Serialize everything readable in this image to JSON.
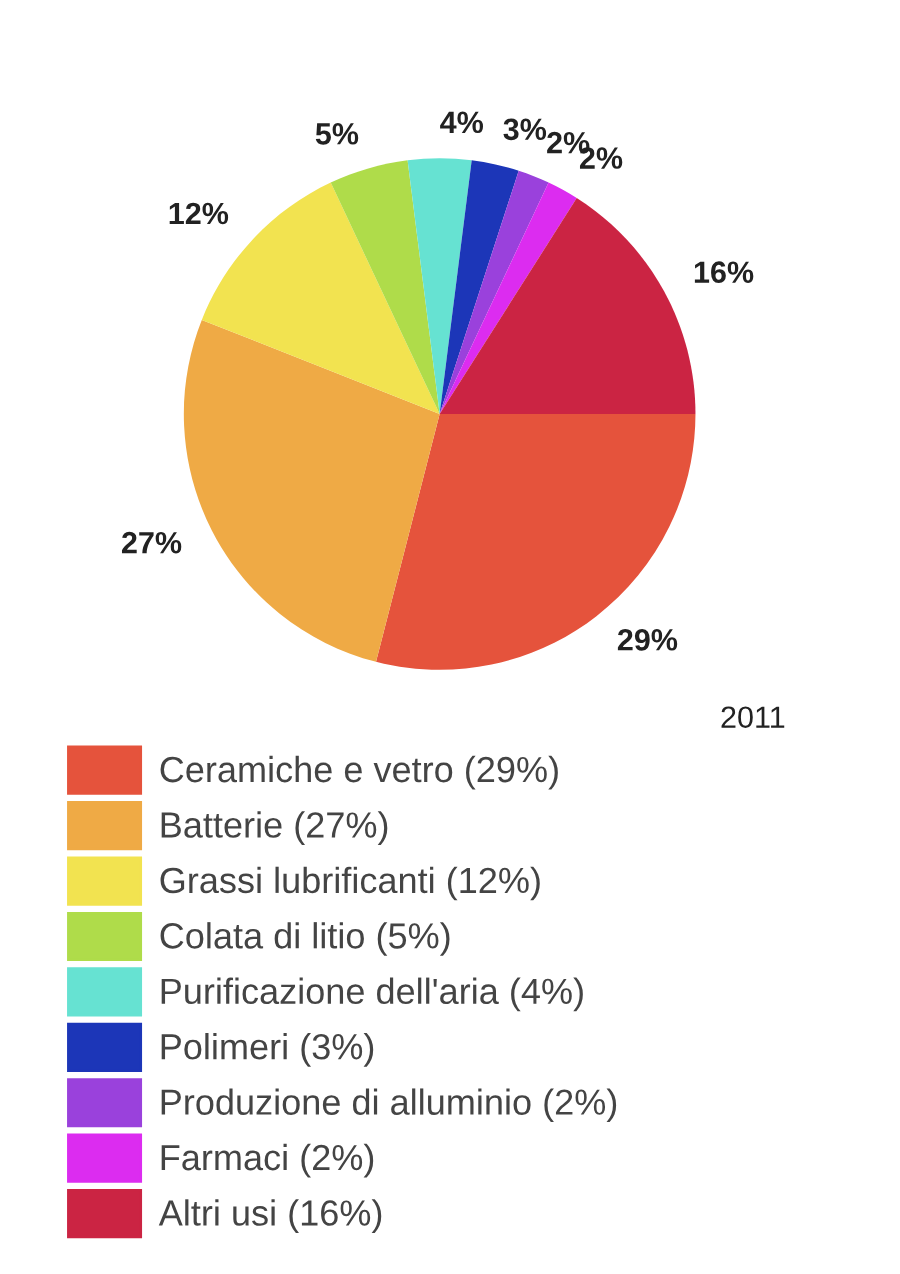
{
  "chart_data": {
    "type": "pie",
    "categories": [
      "Ceramiche e vetro (29%)",
      "Batterie (27%)",
      "Grassi lubrificanti (12%)",
      "Colata di litio (5%)",
      "Purificazione dell'aria (4%)",
      "Polimeri (3%)",
      "Produzione di alluminio (2%)",
      "Farmaci (2%)",
      "Altri usi (16%)"
    ],
    "values": [
      29,
      27,
      12,
      5,
      4,
      3,
      2,
      2,
      16
    ],
    "value_labels": [
      "29%",
      "27%",
      "12%",
      "5%",
      "4%",
      "3%",
      "2%",
      "2%",
      "16%"
    ],
    "colors": [
      "#e5533c",
      "#efaa45",
      "#f2e350",
      "#afdc4a",
      "#66e2d2",
      "#1c36b8",
      "#9a41dc",
      "#dc2cf0",
      "#cb2443"
    ],
    "annotations": [
      "2011"
    ],
    "legend": "bottom"
  }
}
